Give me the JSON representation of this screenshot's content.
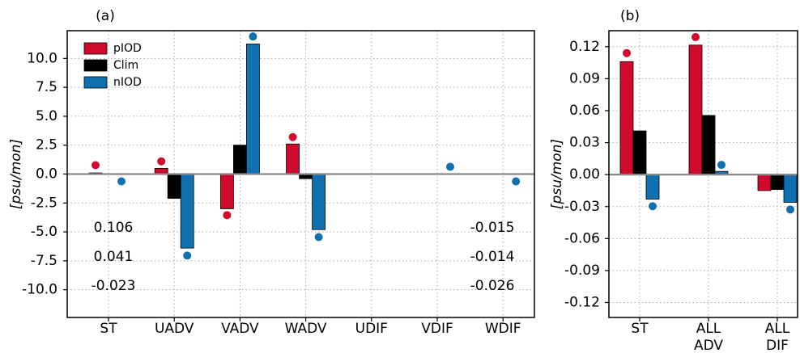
{
  "chart_data": [
    {
      "type": "bar",
      "title": "(a)",
      "ylabel": "[psu/mon]",
      "categories": [
        "ST",
        "UADV",
        "VADV",
        "WADV",
        "UDIF",
        "VDIF",
        "WDIF"
      ],
      "series": [
        {
          "name": "pIOD",
          "color": "#cf0a2c",
          "values": [
            0.1,
            0.5,
            -3.0,
            2.6,
            0,
            0,
            0
          ],
          "dot_values": [
            0.77,
            1.1,
            -3.55,
            3.2,
            null,
            null,
            null
          ]
        },
        {
          "name": "Clim",
          "color": "#000000",
          "values": [
            0.04,
            -2.1,
            2.5,
            -0.4,
            0,
            0,
            0
          ],
          "dot_values": [
            null,
            null,
            null,
            null,
            null,
            null,
            null
          ]
        },
        {
          "name": "nIOD",
          "color": "#1170b0",
          "values": [
            -0.02,
            -6.4,
            11.25,
            -4.8,
            0,
            0,
            0
          ],
          "dot_values": [
            -0.63,
            -7.05,
            11.9,
            -5.45,
            null,
            0.63,
            -0.63
          ]
        }
      ],
      "ylim": [
        -12.4,
        12.4
      ],
      "yticks": [
        {
          "value": -10,
          "label": "-10.0"
        },
        -7.5,
        {
          "value": -5,
          "label": "-5.0"
        },
        -2.5,
        {
          "value": 0,
          "label": "0.0"
        },
        2.5,
        {
          "value": 5,
          "label": "5.0"
        },
        7.5,
        {
          "value": 10,
          "label": "10.0"
        }
      ],
      "grid": true,
      "legend": "upper left",
      "annotations_left": [
        "0.106",
        "0.041",
        "-0.023"
      ],
      "annotations_right": [
        "-0.015",
        "-0.014",
        "-0.026"
      ]
    },
    {
      "type": "bar",
      "title": "(b)",
      "ylabel": "[psu/mon]",
      "categories": [
        "ST",
        "ALL\nADV",
        "ALL\nDIF"
      ],
      "series": [
        {
          "color": "#cf0a2c",
          "values": [
            0.106,
            0.1215,
            -0.015
          ],
          "dot_values": [
            0.114,
            0.129,
            null
          ]
        },
        {
          "color": "#000000",
          "values": [
            0.041,
            0.0555,
            -0.014
          ],
          "dot_values": [
            null,
            null,
            null
          ]
        },
        {
          "color": "#1170b0",
          "values": [
            -0.023,
            0.003,
            -0.026
          ],
          "dot_values": [
            -0.0296,
            0.0091,
            -0.0327
          ]
        }
      ],
      "ylim": [
        -0.134,
        0.135
      ],
      "yticks": [
        -0.12,
        -0.09,
        -0.06,
        -0.03,
        {
          "value": 0,
          "label": "0.00"
        },
        0.03,
        0.06,
        0.09,
        0.12
      ],
      "grid": true
    }
  ]
}
